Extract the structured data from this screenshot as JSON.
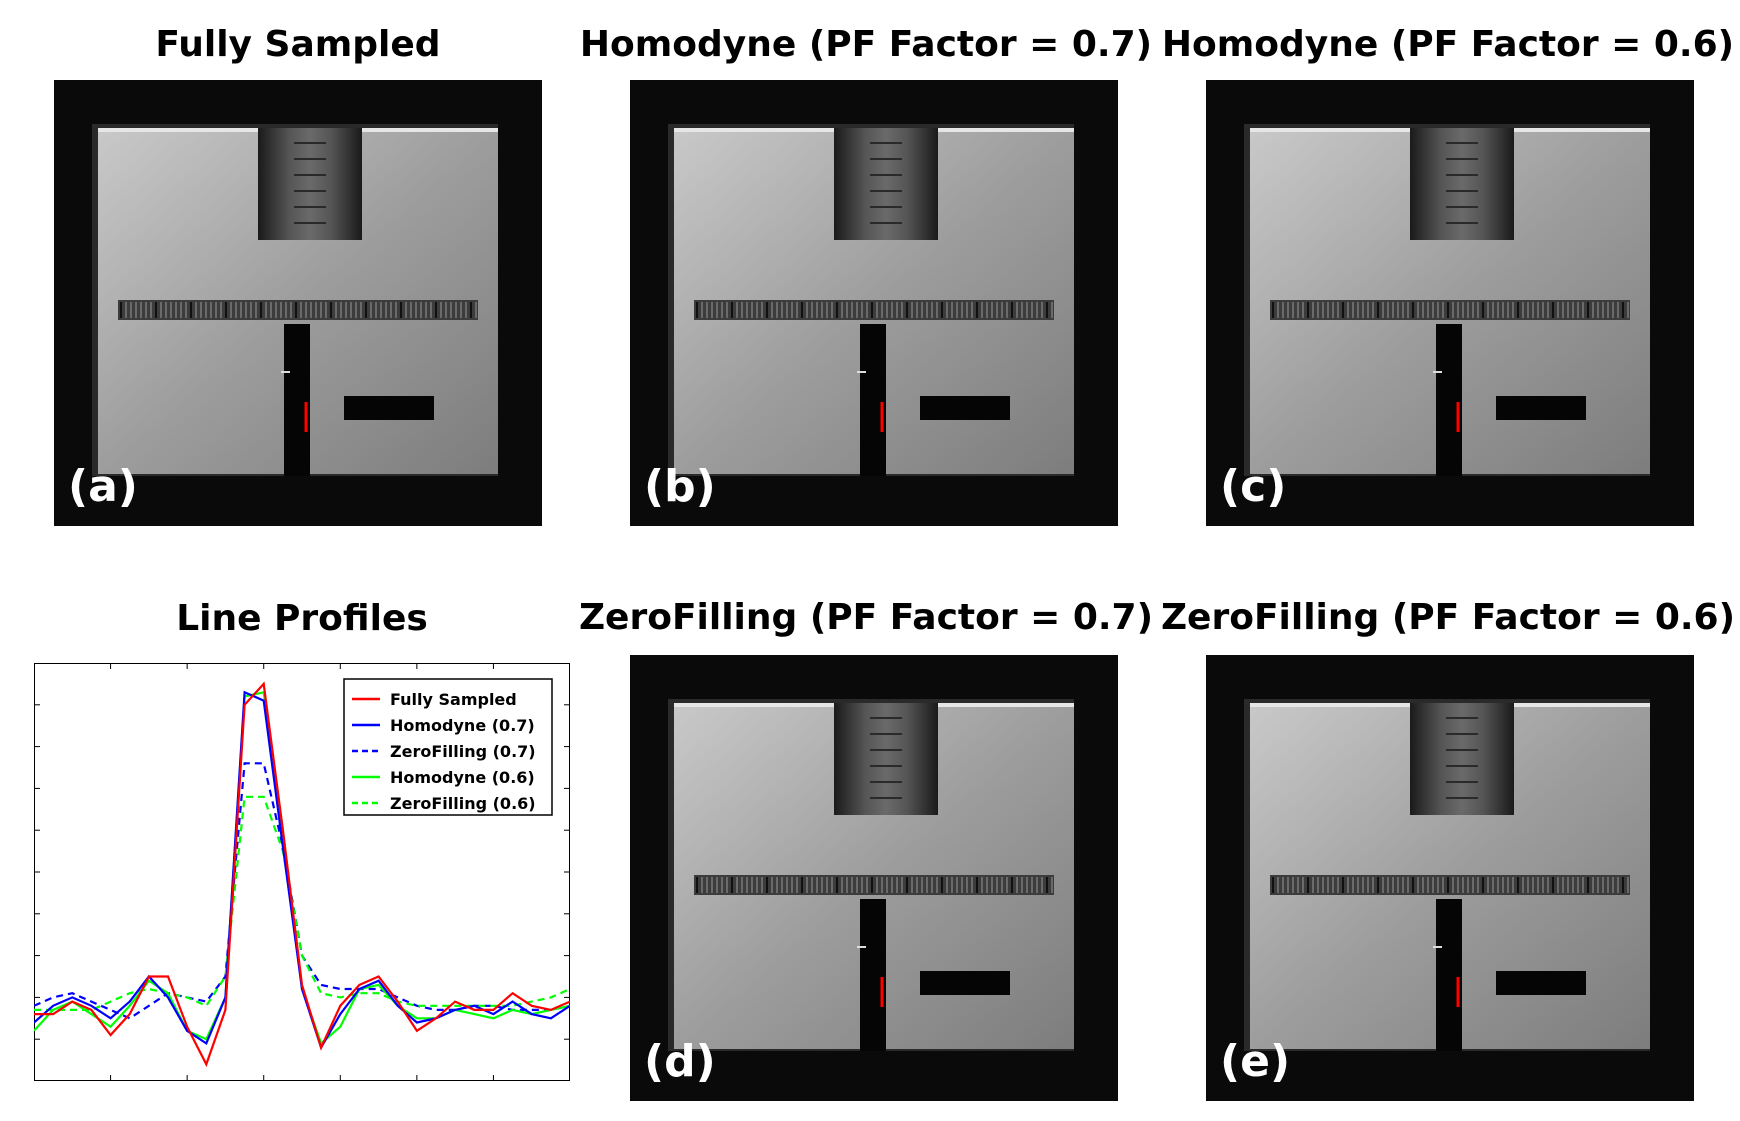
{
  "panels": [
    {
      "title": "Fully Sampled",
      "label": "(a)"
    },
    {
      "title": "Homodyne (PF Factor = 0.7)",
      "label": "(b)"
    },
    {
      "title": "Homodyne (PF Factor = 0.6)",
      "label": "(c)"
    },
    {
      "title": "ZeroFilling (PF Factor = 0.7)",
      "label": "(d)"
    },
    {
      "title": "ZeroFilling (PF Factor = 0.6)",
      "label": "(e)"
    }
  ],
  "chart_data": {
    "type": "line",
    "title": "Line Profiles",
    "xlabel": "",
    "ylabel": "",
    "xlim": [
      1,
      29
    ],
    "ylim": [
      0,
      1
    ],
    "x": [
      1,
      2,
      3,
      4,
      5,
      6,
      7,
      8,
      9,
      10,
      11,
      12,
      13,
      14,
      15,
      16,
      17,
      18,
      19,
      20,
      21,
      22,
      23,
      24,
      25,
      26,
      27,
      28,
      29
    ],
    "legend_position": "top-right",
    "series": [
      {
        "name": "Fully Sampled",
        "color": "#ff0000",
        "dash": "solid",
        "values": [
          0.16,
          0.16,
          0.19,
          0.17,
          0.11,
          0.16,
          0.25,
          0.25,
          0.13,
          0.04,
          0.17,
          0.9,
          0.95,
          0.6,
          0.23,
          0.08,
          0.18,
          0.23,
          0.25,
          0.19,
          0.12,
          0.15,
          0.19,
          0.17,
          0.17,
          0.21,
          0.18,
          0.17,
          0.19
        ]
      },
      {
        "name": "Homodyne (0.7)",
        "color": "#0000ff",
        "dash": "solid",
        "values": [
          0.14,
          0.18,
          0.2,
          0.18,
          0.15,
          0.19,
          0.25,
          0.2,
          0.12,
          0.09,
          0.2,
          0.93,
          0.91,
          0.56,
          0.22,
          0.08,
          0.16,
          0.22,
          0.24,
          0.18,
          0.14,
          0.15,
          0.17,
          0.18,
          0.16,
          0.19,
          0.16,
          0.15,
          0.18
        ]
      },
      {
        "name": "ZeroFilling (0.7)",
        "color": "#0000ff",
        "dash": "dashed",
        "values": [
          0.18,
          0.2,
          0.21,
          0.19,
          0.17,
          0.15,
          0.18,
          0.21,
          0.2,
          0.19,
          0.25,
          0.76,
          0.76,
          0.56,
          0.3,
          0.23,
          0.22,
          0.22,
          0.22,
          0.2,
          0.18,
          0.17,
          0.17,
          0.18,
          0.18,
          0.17,
          0.17,
          0.17,
          0.18
        ]
      },
      {
        "name": "Homodyne (0.6)",
        "color": "#00ff00",
        "dash": "solid",
        "values": [
          0.12,
          0.17,
          0.19,
          0.16,
          0.13,
          0.18,
          0.24,
          0.21,
          0.12,
          0.1,
          0.2,
          0.92,
          0.93,
          0.6,
          0.22,
          0.09,
          0.13,
          0.22,
          0.23,
          0.18,
          0.15,
          0.15,
          0.17,
          0.16,
          0.15,
          0.17,
          0.16,
          0.17,
          0.18
        ]
      },
      {
        "name": "ZeroFilling (0.6)",
        "color": "#00ff00",
        "dash": "dashed",
        "values": [
          0.17,
          0.17,
          0.17,
          0.17,
          0.19,
          0.21,
          0.22,
          0.21,
          0.2,
          0.18,
          0.25,
          0.68,
          0.68,
          0.55,
          0.3,
          0.21,
          0.2,
          0.21,
          0.21,
          0.19,
          0.18,
          0.18,
          0.18,
          0.18,
          0.18,
          0.18,
          0.19,
          0.2,
          0.22
        ]
      }
    ]
  }
}
